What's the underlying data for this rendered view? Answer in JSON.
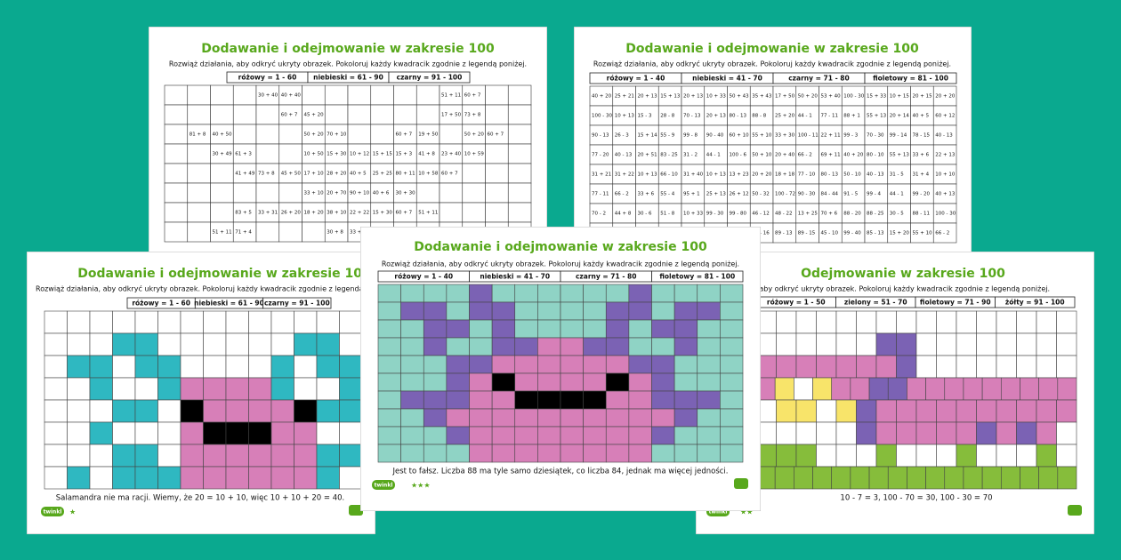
{
  "brand": "twinkl",
  "palette": {
    "w": "#ffffff",
    "t": "#8fd3c5",
    "v": "#7b62b4",
    "p": "#d77fb8",
    "k": "#000000",
    "c": "#2fb8c1",
    "y": "#f8e46a",
    "g": "#86bd3b"
  },
  "sheets": [
    {
      "title": "Dodawanie i odejmowanie w zakresie 100",
      "instruction": "Rozwiąż działania, aby odkryć ukryty obrazek. Pokoloruj każdy kwadracik zgodnie z legendą poniżej.",
      "legend": [
        "różowy = 1 - 60",
        "niebieski = 61 - 90",
        "czarny = 91 - 100"
      ],
      "cells": [
        [
          null,
          null,
          null,
          null,
          "30 + 40",
          "40 + 40",
          null,
          null,
          null,
          null,
          null,
          null,
          "51 + 11",
          "60 + 7",
          null,
          null
        ],
        [
          null,
          null,
          null,
          null,
          null,
          "60 + 7",
          "45 + 20",
          null,
          null,
          null,
          null,
          null,
          "17 + 50",
          "73 + 8",
          null,
          null
        ],
        [
          null,
          "81 + 8",
          "40 + 50",
          null,
          null,
          null,
          "50 + 20",
          "70 + 10",
          null,
          null,
          "60 + 7",
          "19 + 50",
          null,
          "50 + 20",
          "60 + 7",
          null
        ],
        [
          null,
          null,
          "30 + 49",
          "61 + 3",
          null,
          null,
          "10 + 50",
          "15 + 30",
          "10 + 12",
          "15 + 15",
          "15 + 3",
          "41 + 8",
          "23 + 40",
          "10 + 59",
          null,
          null
        ],
        [
          null,
          null,
          null,
          "41 + 49",
          "73 + 8",
          "45 + 50",
          "17 + 10",
          "28 + 20",
          "40 + 5",
          "25 + 25",
          "80 + 11",
          "10 + 58",
          "60 + 7",
          null,
          null,
          null
        ],
        [
          null,
          null,
          null,
          null,
          null,
          null,
          "33 + 10",
          "20 + 70",
          "90 + 10",
          "40 + 6",
          "30 + 30",
          null,
          null,
          null,
          null,
          null
        ],
        [
          null,
          null,
          null,
          "83 + 5",
          "33 + 31",
          "26 + 20",
          "18 + 20",
          "38 + 10",
          "22 + 22",
          "15 + 30",
          "60 + 7",
          "51 + 11",
          null,
          null,
          null,
          null
        ],
        [
          null,
          null,
          "51 + 11",
          "71 + 4",
          null,
          null,
          null,
          "30 + 8",
          "33 + 10",
          "20 + 30",
          null,
          null,
          null,
          null,
          null,
          null
        ]
      ]
    },
    {
      "title": "Dodawanie i odejmowanie w zakresie 100",
      "instruction": "Rozwiąż działania, aby odkryć ukryty obrazek. Pokoloruj każdy kwadracik zgodnie z legendą poniżej.",
      "legend": [
        "różowy = 1 - 40",
        "niebieski = 41 - 70",
        "czarny = 71 - 80",
        "fioletowy = 81 - 100"
      ],
      "cells": [
        [
          "40 + 20",
          "25 + 21",
          "20 + 13",
          "15 + 13",
          "20 + 13",
          "10 + 33",
          "50 + 43",
          "35 + 43",
          "17 + 50",
          "50 + 20",
          "53 + 40",
          "100 - 30",
          "15 + 33",
          "10 + 15",
          "20 + 15",
          "20 + 20"
        ],
        [
          "100 - 30",
          "10 + 13",
          "15 - 3",
          "28 - 8",
          "70 - 13",
          "20 + 13",
          "80 - 13",
          "88 - 8",
          "25 + 20",
          "44 - 1",
          "77 - 11",
          "88 + 1",
          "55 + 13",
          "20 + 14",
          "40 + 5",
          "60 + 12"
        ],
        [
          "90 - 13",
          "26 - 3",
          "15 + 14",
          "55 - 9",
          "99 - 8",
          "90 - 40",
          "60 + 10",
          "55 + 10",
          "33 + 30",
          "100 - 11",
          "22 + 11",
          "99 - 3",
          "70 - 30",
          "99 - 14",
          "78 - 15",
          "40 - 13"
        ],
        [
          "77 - 20",
          "40 - 13",
          "20 + 51",
          "83 - 25",
          "31 - 2",
          "44 - 1",
          "100 - 6",
          "50 + 10",
          "20 + 40",
          "66 - 2",
          "69 + 11",
          "40 + 20",
          "80 - 10",
          "55 + 13",
          "33 + 6",
          "22 + 13"
        ],
        [
          "31 + 21",
          "31 + 22",
          "10 + 13",
          "66 - 10",
          "31 + 40",
          "10 + 13",
          "13 + 23",
          "20 + 20",
          "18 + 18",
          "77 - 10",
          "80 - 13",
          "50 - 10",
          "40 - 13",
          "31 - 5",
          "31 + 4",
          "10 + 10"
        ],
        [
          "77 - 11",
          "66 - 2",
          "33 + 6",
          "55 - 4",
          "95 + 1",
          "25 + 13",
          "26 + 12",
          "50 - 32",
          "100 - 72",
          "90 - 30",
          "84 - 44",
          "91 - 5",
          "99 - 4",
          "44 - 1",
          "99 - 20",
          "40 + 13"
        ],
        [
          "70 - 2",
          "44 + 8",
          "30 - 6",
          "51 - 8",
          "10 + 33",
          "99 - 30",
          "99 - 80",
          "46 - 12",
          "48 - 22",
          "13 + 25",
          "70 + 6",
          "88 - 20",
          "88 - 25",
          "30 - 5",
          "88 - 11",
          "100 - 30"
        ],
        [
          "44 - 1",
          "55 - 5",
          "95 - 10",
          "99 - 11",
          "55 + 13",
          "13 + 28",
          "100 - 20",
          "45 - 16",
          "89 - 13",
          "89 - 15",
          "45 - 10",
          "99 - 40",
          "85 - 13",
          "15 + 20",
          "55 + 10",
          "66 - 2"
        ]
      ]
    },
    {
      "title": "Dodawanie i odejmowanie w zakresie 100",
      "instruction": "Rozwiąż działania, aby odkryć ukryty obrazek. Pokoloruj każdy kwadracik zgodnie z legendą poniżej.",
      "legend": [
        "różowy = 1 - 60",
        "niebieski = 61 - 90",
        "czarny = 91 - 100"
      ],
      "colors": [
        "wwwwwwwwwwwwww",
        "wwwccwwwwwwccw",
        "wccwccwwwwcwcc",
        "wwcwwcppppcwwc",
        "wwwccwkppppkcc",
        "wwcwwwpkkkppww",
        "wwwccwppppppcc",
        "wcwcccppppppcw"
      ],
      "footer": "Salamandra nie ma racji. Wiemy,  że 20 = 10 + 10, więc 10 + 10 + 20 = 40.",
      "stars": "★"
    },
    {
      "title": "Odejmowanie w zakresie 100",
      "instruction": "Rozwiąż działania, aby odkryć ukryty obrazek. Pokoloruj każdy kwadracik zgodnie z legendą poniżej.",
      "legend": [
        "różowy = 1 - 50",
        "zielony = 51 - 70",
        "fioletowy = 71 - 90",
        "żółty = 91 - 100"
      ],
      "colors": [
        "wwwwwwwwwwwwwwww",
        "wwwwwwvvwwwwwwww",
        "pppppppvwwwwwwww",
        "pywyppvvppppppppp",
        "wyywyvpppppppppp",
        "wwwwwvpppppvpvpw",
        "gggwwwgwwwgwwwgw",
        "ggggggggggggggggg"
      ],
      "footer": "10 - 7 = 3, 100 - 70 = 30, 100 - 30 = 70",
      "stars": "★★"
    },
    {
      "title": "Dodawanie i odejmowanie w zakresie 100",
      "instruction": "Rozwiąż działania, aby odkryć ukryty obrazek. Pokoloruj każdy kwadracik zgodnie z legendą poniżej.",
      "legend": [
        "różowy = 1 - 40",
        "niebieski = 41 - 70",
        "czarny = 71 - 80",
        "fioletowy = 81 - 100"
      ],
      "colors": [
        "ttttvttttttvtttt",
        "tvvtvvttttvvtvvt",
        "ttvvtvttttvtvvtt",
        "ttvttvvppvvttvtt",
        "tttvvppppppvvttt",
        "tttvpkppppkpvttt",
        "tvvvppkkkkppvvvt",
        "ttvppppppppppvtt",
        "tttvppppppppvttt",
        "ttttpppppppptttt"
      ],
      "footer": "Jest to fałsz. Liczba 88 ma tyle samo dziesiątek, co liczba 84, jednak ma więcej jedności.",
      "stars": "★★★"
    }
  ]
}
